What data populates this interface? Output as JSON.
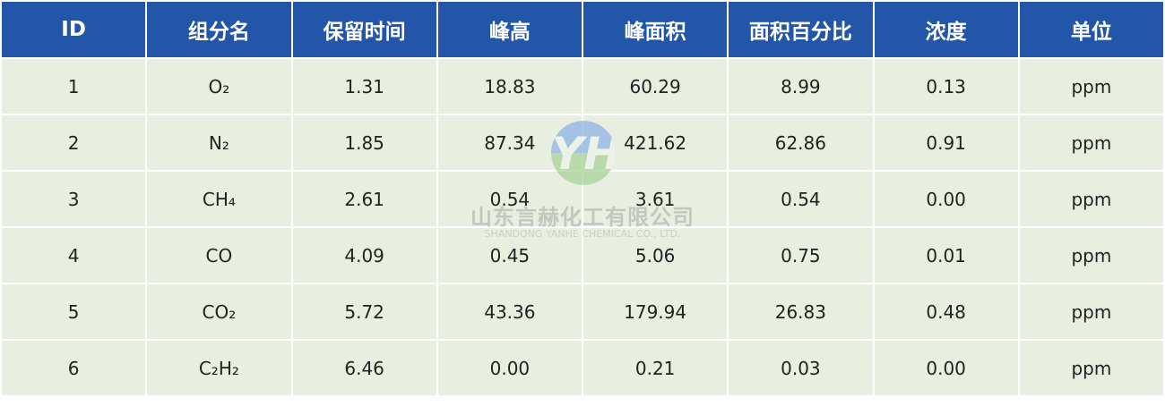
{
  "headers": [
    "ID",
    "组分名",
    "保留时间",
    "峰高",
    "峰面积",
    "面积百分比",
    "浓度",
    "单位"
  ],
  "rows": [
    [
      "1",
      "O₂",
      "1.31",
      "18.83",
      "60.29",
      "8.99",
      "0.13",
      "ppm"
    ],
    [
      "2",
      "N₂",
      "1.85",
      "87.34",
      "421.62",
      "62.86",
      "0.91",
      "ppm"
    ],
    [
      "3",
      "CH₄",
      "2.61",
      "0.54",
      "3.61",
      "0.54",
      "0.00",
      "ppm"
    ],
    [
      "4",
      "CO",
      "4.09",
      "0.45",
      "5.06",
      "0.75",
      "0.01",
      "ppm"
    ],
    [
      "5",
      "CO₂",
      "5.72",
      "43.36",
      "179.94",
      "26.83",
      "0.48",
      "ppm"
    ],
    [
      "6",
      "C₂H₂",
      "6.46",
      "0.00",
      "0.21",
      "0.03",
      "0.00",
      "ppm"
    ]
  ],
  "watermark": {
    "logo": "YH",
    "company_cn": "山东言赫化工有限公司",
    "company_en": "SHANDONG YANHE CHEMICAL CO., LTD."
  },
  "colors": {
    "header_bg": "#2356a8",
    "row_bg": "#e8efe1"
  }
}
